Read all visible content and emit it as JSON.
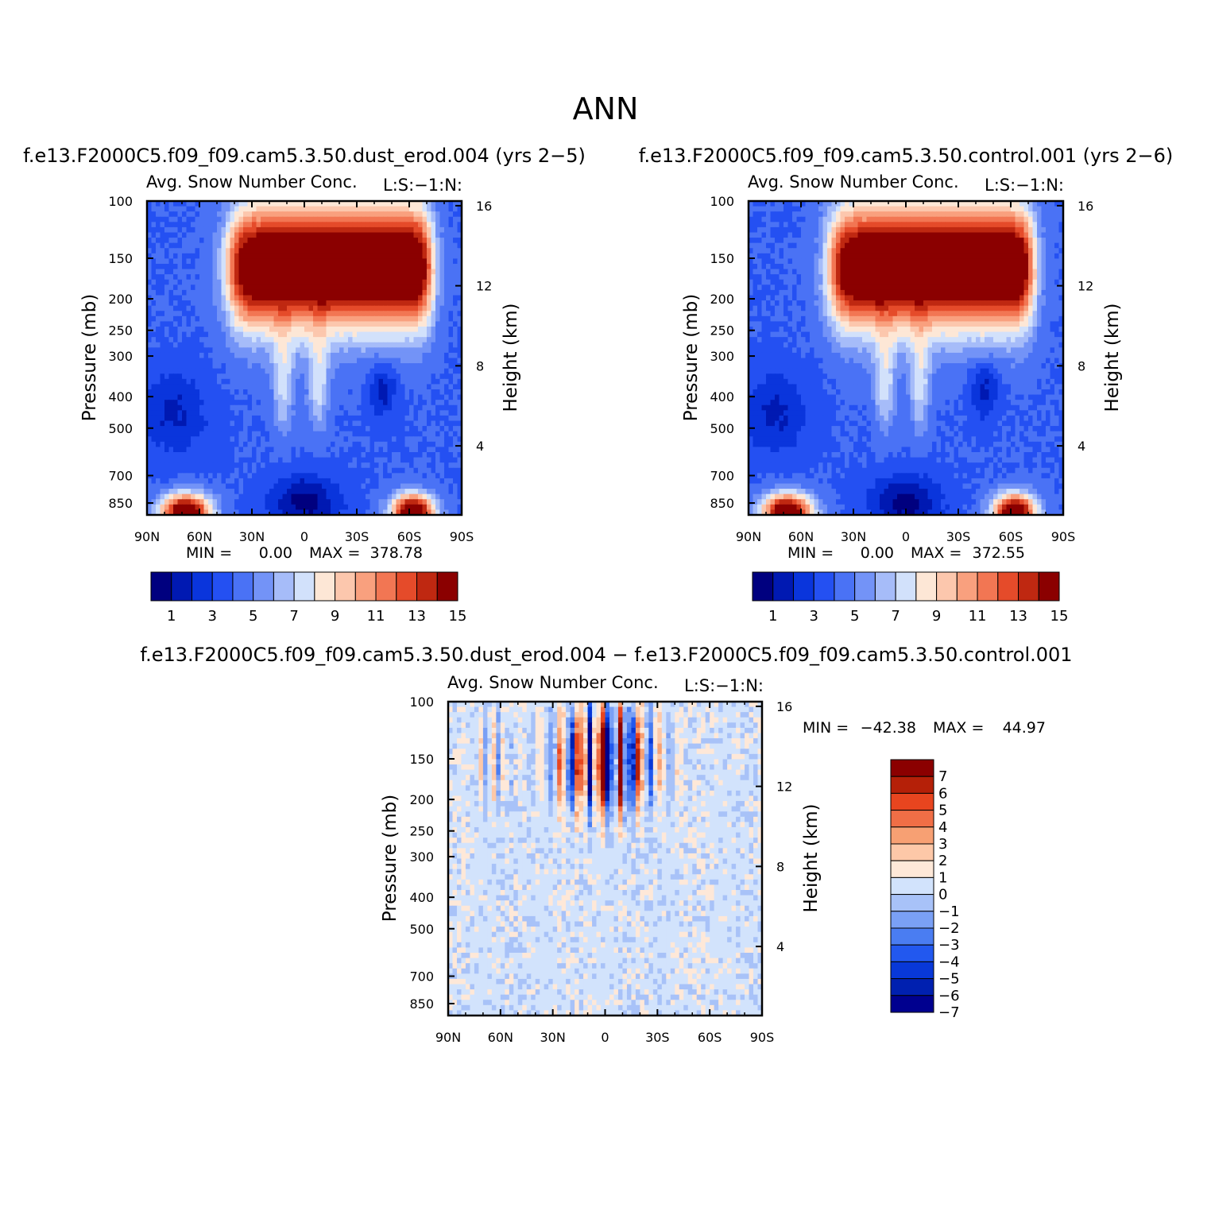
{
  "page": {
    "title": "ANN"
  },
  "colors": {
    "abs_scale": [
      "#00007f",
      "#0019b2",
      "#0a35dc",
      "#2450f2",
      "#4a72f5",
      "#7393f7",
      "#a6bcf9",
      "#d2e1fb",
      "#fde7d6",
      "#fcc7ad",
      "#f9a07e",
      "#f27653",
      "#e54b2a",
      "#bf2811",
      "#8b0000"
    ],
    "diff_scale": [
      "#00008f",
      "#0020b0",
      "#0838d8",
      "#2258ef",
      "#4a7df2",
      "#7aa0f5",
      "#a8c2f8",
      "#d2e3fc",
      "#fee8d8",
      "#fdc8a8",
      "#f7a073",
      "#f06e46",
      "#e8451f",
      "#b52008",
      "#8b0000"
    ]
  },
  "chart_data": [
    {
      "type": "heatmap",
      "case_title": "f.e13.F2000C5.f09_f09.cam5.3.50.dust_erod.004 (yrs 2−5)",
      "variable": "Avg. Snow Number Conc.",
      "units_note": "L:S:−1:N:",
      "ylabel": "Pressure (mb)",
      "y2label": "Height (km)",
      "x_tick_labels": [
        "90N",
        "60N",
        "30N",
        "0",
        "30S",
        "60S",
        "90S"
      ],
      "x_range": [
        90,
        -90
      ],
      "y_tick_labels": [
        "100",
        "150",
        "200",
        "250",
        "300",
        "400",
        "500",
        "700",
        "850"
      ],
      "y_range_mb": [
        100,
        925
      ],
      "y2_tick_labels": [
        "16",
        "12",
        "8",
        "4"
      ],
      "min_label": "MIN =",
      "min_value": "0.00",
      "max_label": "MAX =",
      "max_value": "378.78",
      "colorbar_labels": [
        "1",
        "3",
        "5",
        "7",
        "9",
        "11",
        "13",
        "15"
      ],
      "colorbar_levels": [
        1,
        2,
        3,
        4,
        5,
        6,
        7,
        8,
        9,
        10,
        11,
        12,
        13,
        14
      ],
      "seed": 3
    },
    {
      "type": "heatmap",
      "case_title": "f.e13.F2000C5.f09_f09.cam5.3.50.control.001 (yrs 2−6)",
      "variable": "Avg. Snow Number Conc.",
      "units_note": "L:S:−1:N:",
      "ylabel": "Pressure (mb)",
      "y2label": "Height (km)",
      "x_tick_labels": [
        "90N",
        "60N",
        "30N",
        "0",
        "30S",
        "60S",
        "90S"
      ],
      "x_range": [
        90,
        -90
      ],
      "y_tick_labels": [
        "100",
        "150",
        "200",
        "250",
        "300",
        "400",
        "500",
        "700",
        "850"
      ],
      "y_range_mb": [
        100,
        925
      ],
      "y2_tick_labels": [
        "16",
        "12",
        "8",
        "4"
      ],
      "min_label": "MIN =",
      "min_value": "0.00",
      "max_label": "MAX =",
      "max_value": "372.55",
      "colorbar_labels": [
        "1",
        "3",
        "5",
        "7",
        "9",
        "11",
        "13",
        "15"
      ],
      "colorbar_levels": [
        1,
        2,
        3,
        4,
        5,
        6,
        7,
        8,
        9,
        10,
        11,
        12,
        13,
        14
      ],
      "seed": 7
    },
    {
      "type": "heatmap",
      "case_title": "f.e13.F2000C5.f09_f09.cam5.3.50.dust_erod.004 − f.e13.F2000C5.f09_f09.cam5.3.50.control.001",
      "variable": "Avg. Snow Number Conc.",
      "units_note": "L:S:−1:N:",
      "ylabel": "Pressure (mb)",
      "y2label": "Height (km)",
      "x_tick_labels": [
        "90N",
        "60N",
        "30N",
        "0",
        "30S",
        "60S",
        "90S"
      ],
      "x_range": [
        90,
        -90
      ],
      "y_tick_labels": [
        "100",
        "150",
        "200",
        "250",
        "300",
        "400",
        "500",
        "700",
        "850"
      ],
      "y_range_mb": [
        100,
        925
      ],
      "y2_tick_labels": [
        "16",
        "12",
        "8",
        "4"
      ],
      "min_label": "MIN =",
      "min_value": "−42.38",
      "max_label": "MAX =",
      "max_value": "44.97",
      "colorbar_labels": [
        "7",
        "6",
        "5",
        "4",
        "3",
        "2",
        "1",
        "0",
        "−1",
        "−2",
        "−3",
        "−4",
        "−5",
        "−6",
        "−7"
      ],
      "colorbar_levels": [
        -7,
        -6,
        -5,
        -4,
        -3,
        -2,
        -1,
        0,
        1,
        2,
        3,
        4,
        5,
        6,
        7
      ],
      "seed": 11
    }
  ]
}
